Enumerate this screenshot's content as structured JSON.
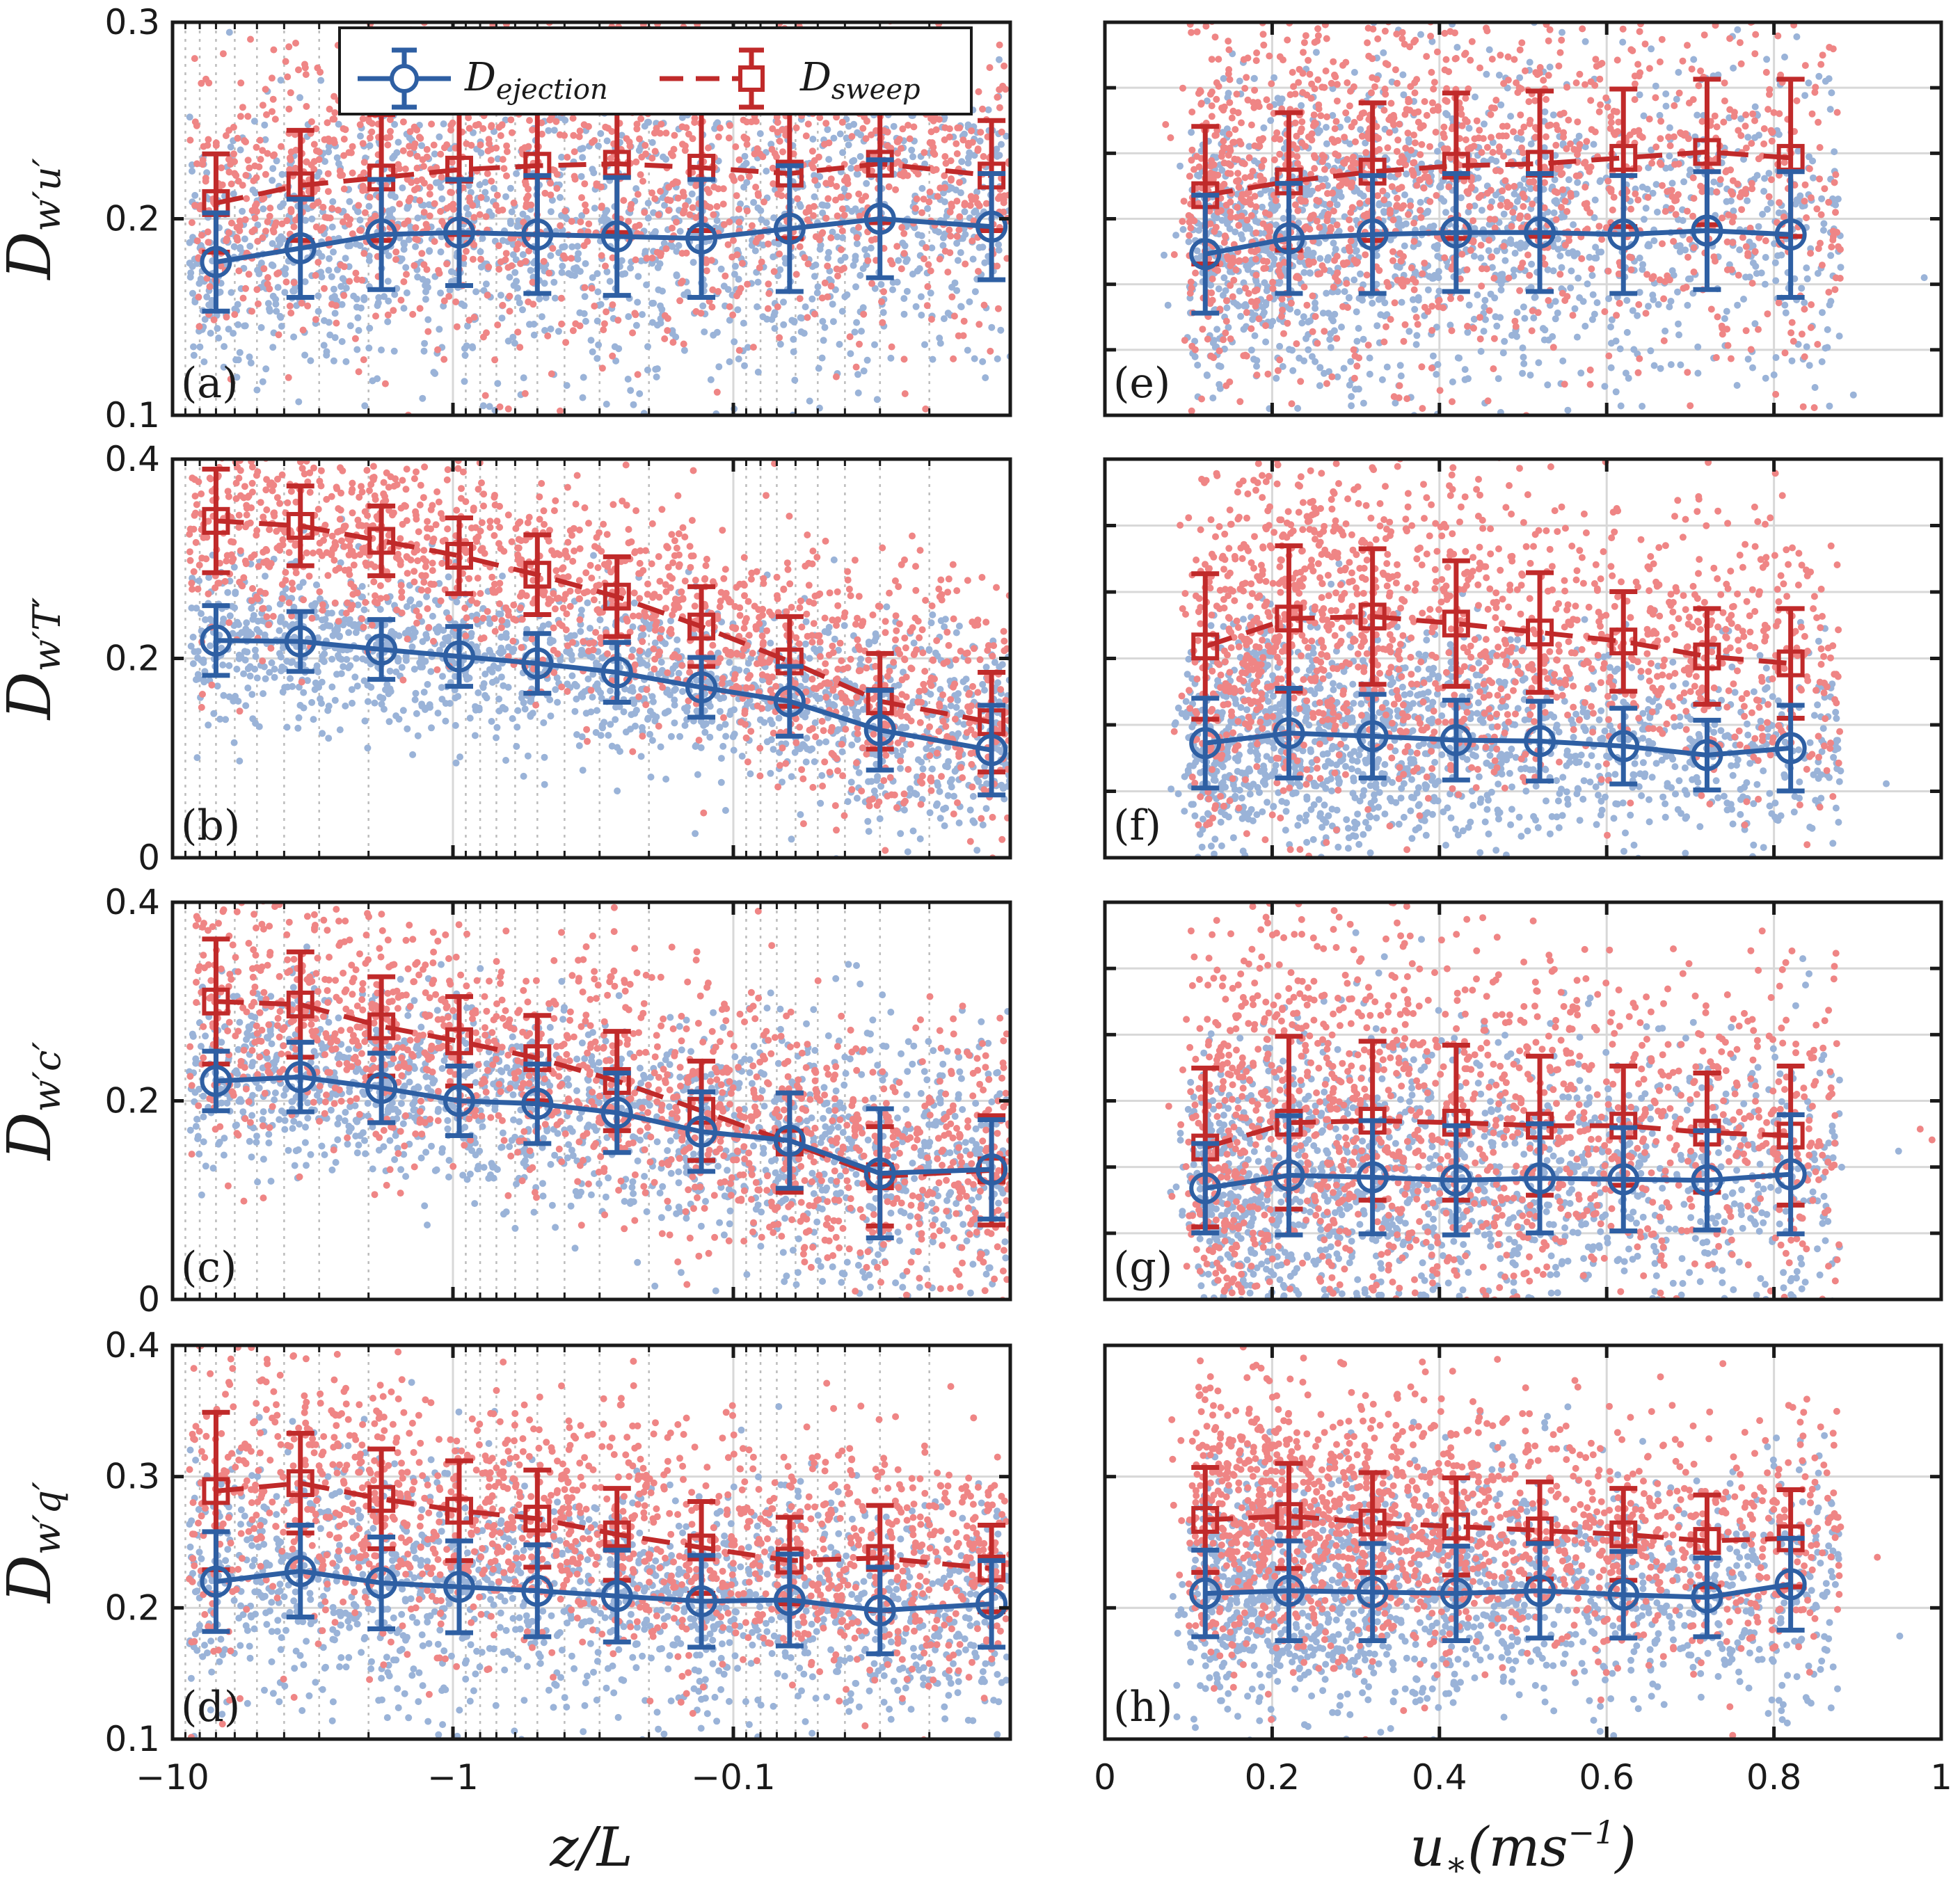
{
  "chart_data": {
    "type": "scatter",
    "colors": {
      "ejection": "#2e5fa3",
      "sweep": "#c02a2a",
      "ejection_points": "#9ab3d8",
      "sweep_points": "#ef8585",
      "grid": "#d8d8d8"
    },
    "legend": {
      "placement": "top (inside panel a)",
      "ejection": {
        "main": "D",
        "sub": "ejection"
      },
      "sweep": {
        "main": "D",
        "sub": "sweep"
      }
    },
    "x_axes": {
      "left": {
        "label": "z/L",
        "scale": "symlog (unstable range, shown on log-magnitude axis)",
        "range": [
          -10,
          0
        ],
        "ticks": [
          -10,
          -1,
          -0.1
        ],
        "ticklabels": [
          "−10",
          "−1",
          "−0.1"
        ]
      },
      "right": {
        "label": "u∗(ms⁻¹)",
        "label_main": "u",
        "label_sub": "∗",
        "label_rest": "(ms",
        "label_sup": "−1",
        "label_close": ")",
        "range": [
          0,
          1
        ],
        "ticks": [
          0,
          0.2,
          0.4,
          0.6,
          0.8,
          1
        ],
        "ticklabels": [
          "0",
          "0.2",
          "0.4",
          "0.6",
          "0.8",
          "1"
        ]
      }
    },
    "rows": [
      {
        "ylabel": "Dw′u′",
        "ylabel_main": "D",
        "ylabel_sub": "w′u′",
        "ylim": [
          0.1,
          0.3
        ],
        "yticks": [
          0.1,
          0.2,
          0.3
        ],
        "yticklabels": [
          "0.1",
          "0.2",
          "0.3"
        ],
        "left_panel": "(a)",
        "right_panel": "(e)",
        "left_ejection": [
          0.178,
          0.185,
          0.192,
          0.193,
          0.192,
          0.191,
          0.19,
          0.195,
          0.2,
          0.196
        ],
        "left_ejection_err": [
          0.025,
          0.025,
          0.028,
          0.027,
          0.03,
          0.03,
          0.03,
          0.032,
          0.03,
          0.027
        ],
        "left_sweep": [
          0.208,
          0.217,
          0.221,
          0.225,
          0.227,
          0.228,
          0.226,
          0.223,
          0.228,
          0.222
        ],
        "left_sweep_err": [
          0.025,
          0.028,
          0.032,
          0.033,
          0.035,
          0.035,
          0.032,
          0.033,
          0.03,
          0.028
        ],
        "right_ejection": [
          0.182,
          0.19,
          0.192,
          0.193,
          0.193,
          0.192,
          0.194,
          0.192
        ],
        "right_ejection_err": [
          0.03,
          0.028,
          0.03,
          0.03,
          0.03,
          0.03,
          0.03,
          0.032
        ],
        "right_sweep": [
          0.212,
          0.219,
          0.224,
          0.227,
          0.228,
          0.231,
          0.234,
          0.231
        ],
        "right_sweep_err": [
          0.035,
          0.035,
          0.035,
          0.037,
          0.037,
          0.035,
          0.037,
          0.04
        ]
      },
      {
        "ylabel": "Dw′T′",
        "ylabel_main": "D",
        "ylabel_sub": "w′T′",
        "ylim": [
          0,
          0.4
        ],
        "yticks": [
          0,
          0.2,
          0.4
        ],
        "yticklabels": [
          "0",
          "0.2",
          "0.4"
        ],
        "left_panel": "(b)",
        "right_panel": "(f)",
        "left_ejection": [
          0.218,
          0.217,
          0.209,
          0.202,
          0.195,
          0.186,
          0.171,
          0.157,
          0.128,
          0.108
        ],
        "left_ejection_err": [
          0.035,
          0.03,
          0.03,
          0.03,
          0.03,
          0.03,
          0.03,
          0.035,
          0.04,
          0.045
        ],
        "left_sweep": [
          0.338,
          0.333,
          0.318,
          0.303,
          0.284,
          0.262,
          0.232,
          0.197,
          0.157,
          0.136
        ],
        "left_sweep_err": [
          0.052,
          0.04,
          0.035,
          0.038,
          0.04,
          0.04,
          0.04,
          0.045,
          0.048,
          0.05
        ],
        "right_ejection": [
          0.115,
          0.125,
          0.122,
          0.118,
          0.117,
          0.112,
          0.103,
          0.11
        ],
        "right_ejection_err": [
          0.045,
          0.045,
          0.042,
          0.04,
          0.04,
          0.038,
          0.035,
          0.043
        ],
        "right_sweep": [
          0.212,
          0.24,
          0.242,
          0.235,
          0.226,
          0.217,
          0.202,
          0.195
        ],
        "right_sweep_err": [
          0.073,
          0.073,
          0.068,
          0.063,
          0.06,
          0.05,
          0.048,
          0.055
        ]
      },
      {
        "ylabel": "Dw′c′",
        "ylabel_main": "D",
        "ylabel_sub": "w′c′",
        "ylim": [
          0,
          0.4
        ],
        "yticks": [
          0,
          0.2,
          0.4
        ],
        "yticklabels": [
          "0",
          "0.2",
          "0.4"
        ],
        "left_panel": "(c)",
        "right_panel": "(g)",
        "left_ejection": [
          0.22,
          0.224,
          0.213,
          0.2,
          0.197,
          0.188,
          0.169,
          0.16,
          0.127,
          0.131
        ],
        "left_ejection_err": [
          0.03,
          0.035,
          0.035,
          0.035,
          0.04,
          0.04,
          0.04,
          0.048,
          0.065,
          0.05
        ],
        "left_sweep": [
          0.3,
          0.297,
          0.275,
          0.26,
          0.243,
          0.22,
          0.19,
          0.158,
          0.124,
          0.13
        ],
        "left_sweep_err": [
          0.063,
          0.053,
          0.05,
          0.045,
          0.043,
          0.05,
          0.05,
          0.05,
          0.05,
          0.055
        ],
        "right_ejection": [
          0.112,
          0.125,
          0.123,
          0.12,
          0.122,
          0.121,
          0.12,
          0.126
        ],
        "right_ejection_err": [
          0.045,
          0.06,
          0.057,
          0.055,
          0.055,
          0.052,
          0.05,
          0.06
        ],
        "right_sweep": [
          0.153,
          0.178,
          0.18,
          0.178,
          0.175,
          0.175,
          0.168,
          0.165
        ],
        "right_sweep_err": [
          0.08,
          0.087,
          0.08,
          0.078,
          0.07,
          0.06,
          0.06,
          0.07
        ]
      },
      {
        "ylabel": "Dw′q′",
        "ylabel_main": "D",
        "ylabel_sub": "w′q′",
        "ylim": [
          0.1,
          0.4
        ],
        "yticks": [
          0.1,
          0.2,
          0.3,
          0.4
        ],
        "yticklabels": [
          "0.1",
          "0.2",
          "0.3",
          "0.4"
        ],
        "left_panel": "(d)",
        "right_panel": "(h)",
        "left_ejection": [
          0.22,
          0.228,
          0.219,
          0.216,
          0.213,
          0.209,
          0.205,
          0.206,
          0.198,
          0.203
        ],
        "left_ejection_err": [
          0.038,
          0.035,
          0.035,
          0.035,
          0.035,
          0.035,
          0.035,
          0.035,
          0.033,
          0.033
        ],
        "left_sweep": [
          0.289,
          0.295,
          0.283,
          0.274,
          0.268,
          0.256,
          0.246,
          0.236,
          0.238,
          0.23
        ],
        "left_sweep_err": [
          0.06,
          0.038,
          0.038,
          0.038,
          0.037,
          0.035,
          0.035,
          0.033,
          0.04,
          0.033
        ],
        "right_ejection": [
          0.211,
          0.213,
          0.212,
          0.211,
          0.213,
          0.21,
          0.208,
          0.218
        ],
        "right_ejection_err": [
          0.033,
          0.038,
          0.037,
          0.036,
          0.036,
          0.033,
          0.03,
          0.035
        ],
        "right_sweep": [
          0.267,
          0.27,
          0.265,
          0.262,
          0.259,
          0.256,
          0.251,
          0.253
        ],
        "right_sweep_err": [
          0.04,
          0.04,
          0.038,
          0.037,
          0.037,
          0.035,
          0.035,
          0.037
        ]
      }
    ],
    "left_x_bin_centers": [
      -7,
      -3.5,
      -1.8,
      -0.95,
      -0.5,
      -0.26,
      -0.13,
      -0.063,
      -0.03,
      -0.012
    ],
    "right_x_bin_centers": [
      0.12,
      0.22,
      0.32,
      0.42,
      0.52,
      0.62,
      0.72,
      0.82
    ]
  }
}
